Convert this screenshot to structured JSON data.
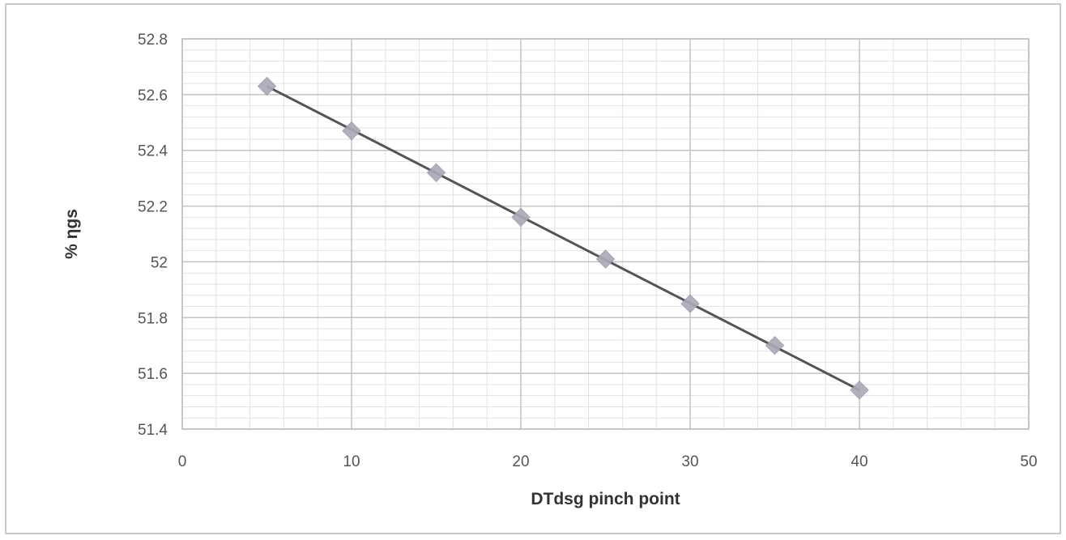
{
  "chart_data": {
    "type": "scatter",
    "title": "",
    "xlabel": "DTdsg pinch point",
    "ylabel": "% ηgs",
    "xlim": [
      0,
      50
    ],
    "ylim": [
      51.4,
      52.8
    ],
    "x_ticks": [
      "0",
      "10",
      "20",
      "30",
      "40",
      "50"
    ],
    "y_ticks": [
      "51.4",
      "51.6",
      "51.8",
      "52",
      "52.2",
      "52.4",
      "52.6",
      "52.8"
    ],
    "grid": true,
    "minor_grid": true,
    "legend": "none",
    "series": [
      {
        "x": [
          5,
          10,
          15,
          20,
          25,
          30,
          35,
          40
        ],
        "y": [
          52.63,
          52.47,
          52.32,
          52.16,
          52.01,
          51.85,
          51.7,
          51.54
        ],
        "marker": "diamond",
        "line": "linear-trendline"
      }
    ],
    "colors": {
      "marker": "#a9a9b8",
      "line": "#555555",
      "major_grid": "#c4c4c4",
      "minor_grid": "#e2e2e2"
    }
  }
}
